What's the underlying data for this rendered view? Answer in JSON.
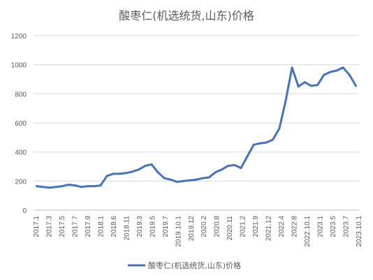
{
  "chart_data": {
    "type": "line",
    "title": "酸枣仁(机选统货,山东)价格",
    "xlabel": "",
    "ylabel": "",
    "ylim": [
      0,
      1200
    ],
    "yticks": [
      0,
      200,
      400,
      600,
      800,
      1000,
      1200
    ],
    "grid": true,
    "legend_position": "bottom",
    "color": "#4472c4",
    "x_tick_labels": [
      "2017.1",
      "2017.3",
      "2017.5",
      "2017.7",
      "2017.9",
      "2018.1",
      "2018.6",
      "2018.11",
      "2019.3",
      "2019.5",
      "2019.7",
      "2019.10.1",
      "2019.12",
      "2020.2",
      "2020.8",
      "2020.11",
      "2021.2",
      "2021.9",
      "2021.12",
      "2022.4",
      "2022.8",
      "2022.10.1",
      "2023.1",
      "2023.5",
      "2023.7",
      "2023.10.1"
    ],
    "series": [
      {
        "name": "酸枣仁(机选统货,山东)价格",
        "values": [
          165,
          160,
          155,
          160,
          165,
          175,
          170,
          160,
          165,
          165,
          170,
          235,
          250,
          250,
          255,
          265,
          280,
          305,
          315,
          260,
          220,
          210,
          195,
          200,
          205,
          210,
          220,
          225,
          260,
          280,
          305,
          310,
          290,
          370,
          450,
          460,
          465,
          485,
          560,
          750,
          980,
          850,
          880,
          855,
          860,
          930,
          950,
          960,
          980,
          930,
          855
        ]
      }
    ]
  }
}
